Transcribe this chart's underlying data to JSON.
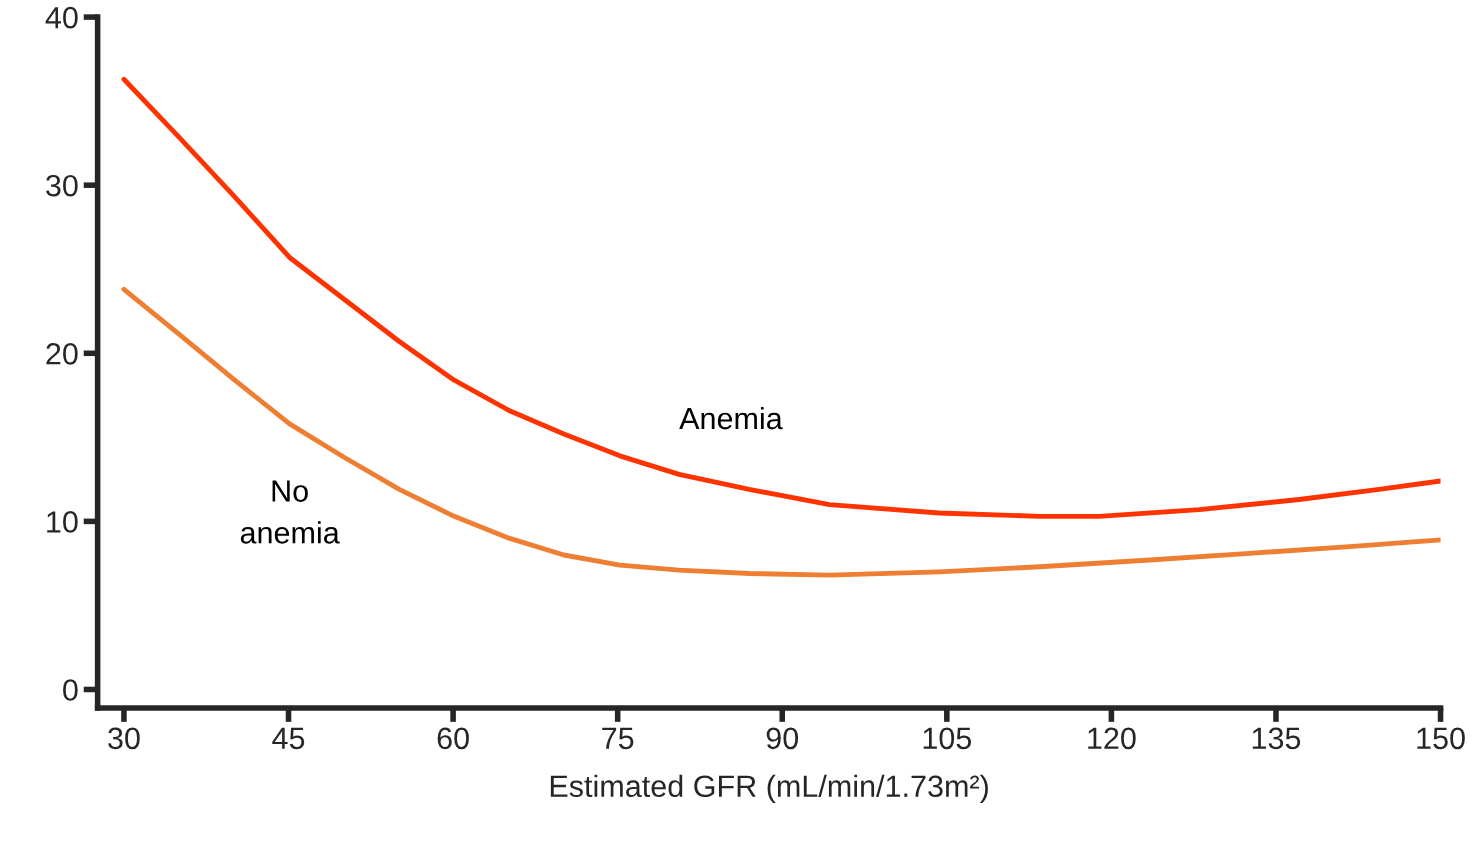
{
  "chart_data": {
    "type": "line",
    "xlabel": "Estimated GFR (mL/min/1.73m²)",
    "x": [
      30,
      35.1,
      40.1,
      45.1,
      50.1,
      55.1,
      60.1,
      65.1,
      70.1,
      75.2,
      80.6,
      87,
      94.3,
      104.3,
      113.5,
      118.9,
      128,
      137.1,
      144.4,
      150
    ],
    "series": [
      {
        "name": "Anemia",
        "color": "#ff3300",
        "values": [
          36.3,
          32.8,
          29.3,
          25.7,
          23.2,
          20.7,
          18.4,
          16.6,
          15.2,
          13.9,
          12.8,
          11.9,
          11.0,
          10.5,
          10.3,
          10.3,
          10.7,
          11.3,
          11.9,
          12.4
        ]
      },
      {
        "name": "No anemia",
        "color": "#ee7f32",
        "x": [
          30,
          35.1,
          40.1,
          45.1,
          50.1,
          55.1,
          60.1,
          65.1,
          70.1,
          75.2,
          80.6,
          87,
          94.3,
          104.3,
          113.5,
          123.5,
          132.6,
          141.7,
          150
        ],
        "values": [
          23.8,
          21.1,
          18.4,
          15.8,
          13.8,
          11.9,
          10.3,
          9.0,
          8.0,
          7.4,
          7.1,
          6.9,
          6.8,
          7.0,
          7.3,
          7.7,
          8.1,
          8.5,
          8.9
        ]
      }
    ],
    "xlim": [
      27.6,
      150
    ],
    "xticks": [
      30,
      45,
      60,
      75,
      90,
      105,
      120,
      135,
      150
    ],
    "ylim": [
      -1.1,
      40
    ],
    "yticks": [
      0,
      10,
      20,
      30,
      40
    ],
    "grid": false,
    "legend": false,
    "marker": "none",
    "line_style": "solid"
  }
}
